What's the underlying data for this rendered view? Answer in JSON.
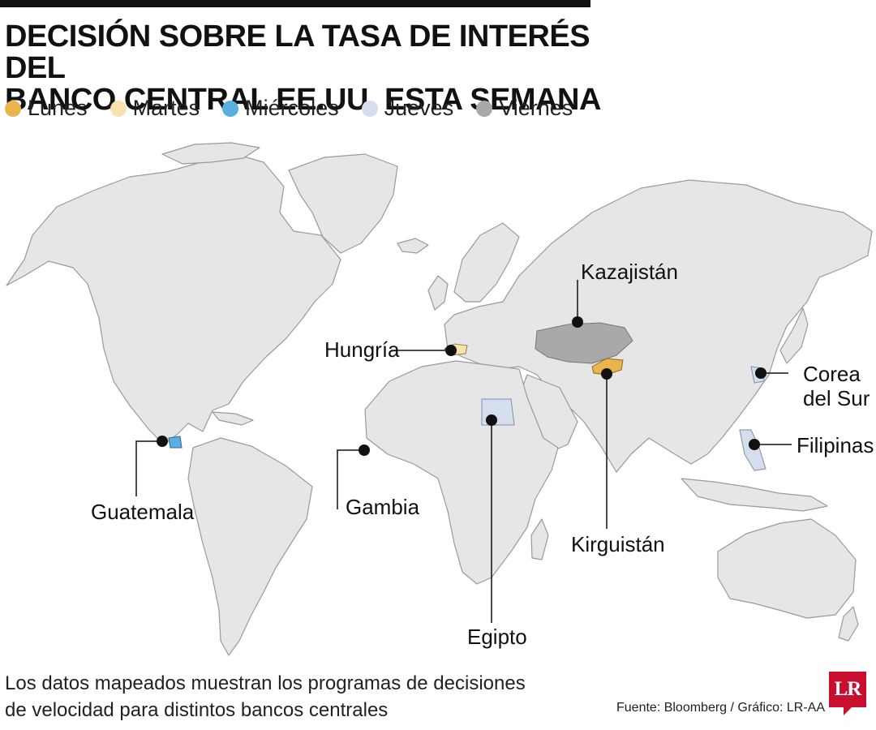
{
  "title": {
    "line1": "DECISIÓN SOBRE LA TASA DE INTERÉS DEL",
    "line2": "BANCO CENTRAL EE.UU. ESTA SEMANA"
  },
  "legend": [
    {
      "label": "Lunes",
      "color": "#e8b64c"
    },
    {
      "label": "Martes",
      "color": "#f8e2ad"
    },
    {
      "label": "Miércoles",
      "color": "#5aafe0"
    },
    {
      "label": "Jueves",
      "color": "#d4deef"
    },
    {
      "label": "Viernes",
      "color": "#a9a9a9"
    }
  ],
  "countries": {
    "kazajistan": "Kazajistán",
    "hungria": "Hungría",
    "corea_line1": "Corea",
    "corea_line2": "del Sur",
    "filipinas": "Filipinas",
    "guatemala": "Guatemala",
    "gambia": "Gambia",
    "kirguistan": "Kirguistán",
    "egipto": "Egipto"
  },
  "colors": {
    "land": "#e6e6e6",
    "border": "#9a9a9a",
    "lunes": "#e8b64c",
    "martes": "#f8e2ad",
    "miercoles": "#5aafe0",
    "jueves": "#d4deef",
    "viernes": "#a9a9a9"
  },
  "footnote": {
    "line1": "Los datos mapeados muestran los programas de decisiones",
    "line2": "de velocidad para distintos bancos centrales"
  },
  "source": "Fuente: Bloomberg / Gráfico: LR-AA",
  "logo": "LR"
}
